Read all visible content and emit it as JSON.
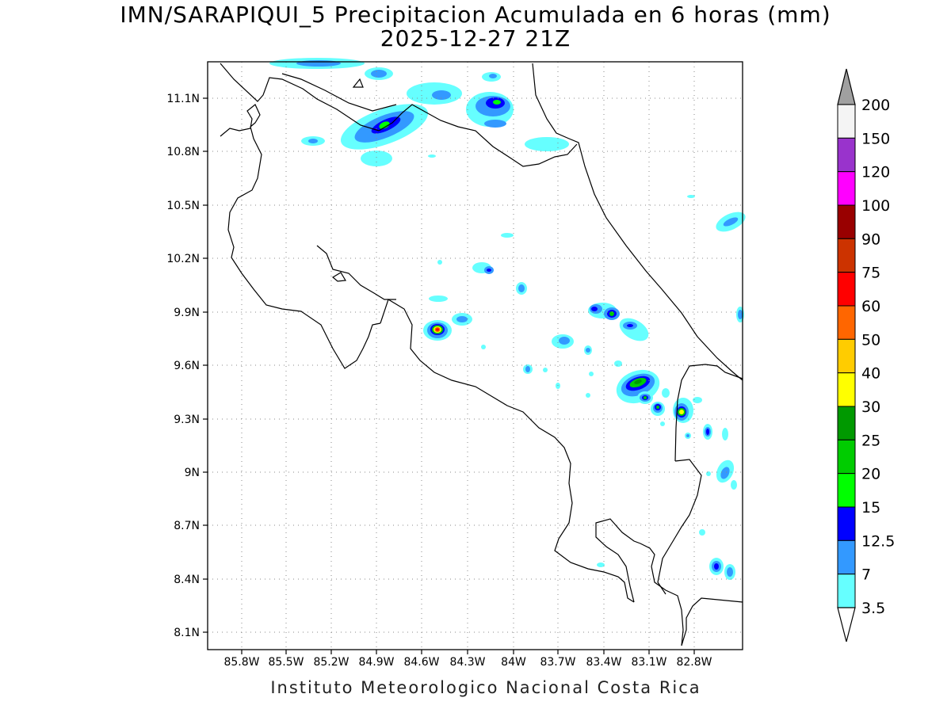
{
  "title": "IMN/SARAPIQUI_5 Precipitacion Acumulada en 6 horas (mm)",
  "subtitle": "2025-12-27 21Z",
  "footer": "Instituto Meteorologico Nacional Costa Rica",
  "map": {
    "lon_range": [
      -86.0,
      -82.6
    ],
    "lat_range": [
      8.0,
      11.3
    ],
    "lat_ticks": [
      "11.1N",
      "10.8N",
      "10.5N",
      "10.2N",
      "9.9N",
      "9.6N",
      "9.3N",
      "9N",
      "8.7N",
      "8.4N",
      "8.1N"
    ],
    "lon_ticks": [
      "85.8W",
      "85.5W",
      "85.2W",
      "84.9W",
      "84.6W",
      "84.3W",
      "84W",
      "83.7W",
      "83.4W",
      "83.1W",
      "82.8W"
    ]
  },
  "colorbar": {
    "labels": [
      "200",
      "150",
      "120",
      "100",
      "90",
      "75",
      "60",
      "50",
      "40",
      "30",
      "25",
      "20",
      "15",
      "12.5",
      "7",
      "3.5"
    ],
    "colors": [
      "#f4f4f4",
      "#9933cc",
      "#ff00ff",
      "#990000",
      "#cc3300",
      "#ff0000",
      "#ff6600",
      "#ffcc00",
      "#ffff00",
      "#009900",
      "#00cc00",
      "#00ff00",
      "#0000ff",
      "#3399ff",
      "#66ffff"
    ],
    "over_color": "#a0a0a0",
    "under_color": "#ffffff"
  },
  "precip_cells": [
    {
      "lon": -84.85,
      "lat": 10.95,
      "peak": 20
    },
    {
      "lon": -84.15,
      "lat": 11.07,
      "peak": 20
    },
    {
      "lon": -84.48,
      "lat": 9.8,
      "peak": 60
    },
    {
      "lon": -83.43,
      "lat": 9.88,
      "peak": 20
    },
    {
      "lon": -83.18,
      "lat": 9.5,
      "peak": 25
    },
    {
      "lon": -82.9,
      "lat": 9.34,
      "peak": 40
    },
    {
      "lon": -83.05,
      "lat": 9.36,
      "peak": 15
    },
    {
      "lon": -83.15,
      "lat": 9.42,
      "peak": 15
    },
    {
      "lon": -83.5,
      "lat": 9.91,
      "peak": 12.5
    },
    {
      "lon": -84.17,
      "lat": 10.13,
      "peak": 12.5
    },
    {
      "lon": -83.25,
      "lat": 9.81,
      "peak": 12.5
    },
    {
      "lon": -82.7,
      "lat": 8.45,
      "peak": 12.5
    }
  ]
}
